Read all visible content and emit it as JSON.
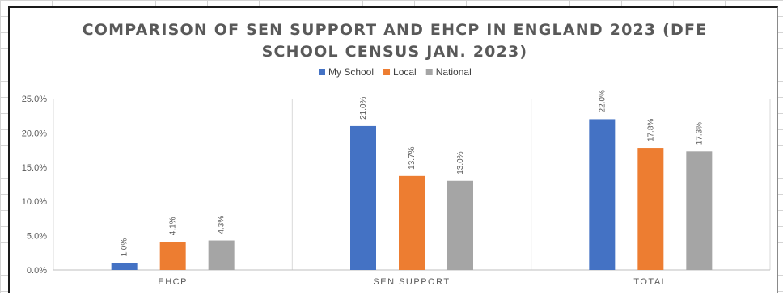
{
  "chart_data": {
    "type": "bar",
    "title_lines": [
      "COMPARISON OF SEN SUPPORT AND EHCP IN ENGLAND 2023 (DFE",
      "SCHOOL CENSUS JAN. 2023)"
    ],
    "categories": [
      "EHCP",
      "SEN SUPPORT",
      "TOTAL"
    ],
    "series": [
      {
        "name": "My School",
        "color": "#4472C4",
        "values": [
          1.0,
          21.0,
          22.0
        ],
        "labels": [
          "1.0%",
          "21.0%",
          "22.0%"
        ]
      },
      {
        "name": "Local",
        "color": "#ED7D31",
        "values": [
          4.1,
          13.7,
          17.8
        ],
        "labels": [
          "4.1%",
          "13.7%",
          "17.8%"
        ]
      },
      {
        "name": "National",
        "color": "#A5A5A5",
        "values": [
          4.3,
          13.0,
          17.3
        ],
        "labels": [
          "4.3%",
          "13.0%",
          "17.3%"
        ]
      }
    ],
    "ylim": [
      0,
      25
    ],
    "yticks": [
      0,
      5,
      10,
      15,
      20,
      25
    ],
    "ytick_labels": [
      "0.0%",
      "5.0%",
      "10.0%",
      "15.0%",
      "20.0%",
      "25.0%"
    ],
    "xlabel": "",
    "ylabel": "",
    "legend": "top-center",
    "grid": "vertical-category-separators"
  }
}
